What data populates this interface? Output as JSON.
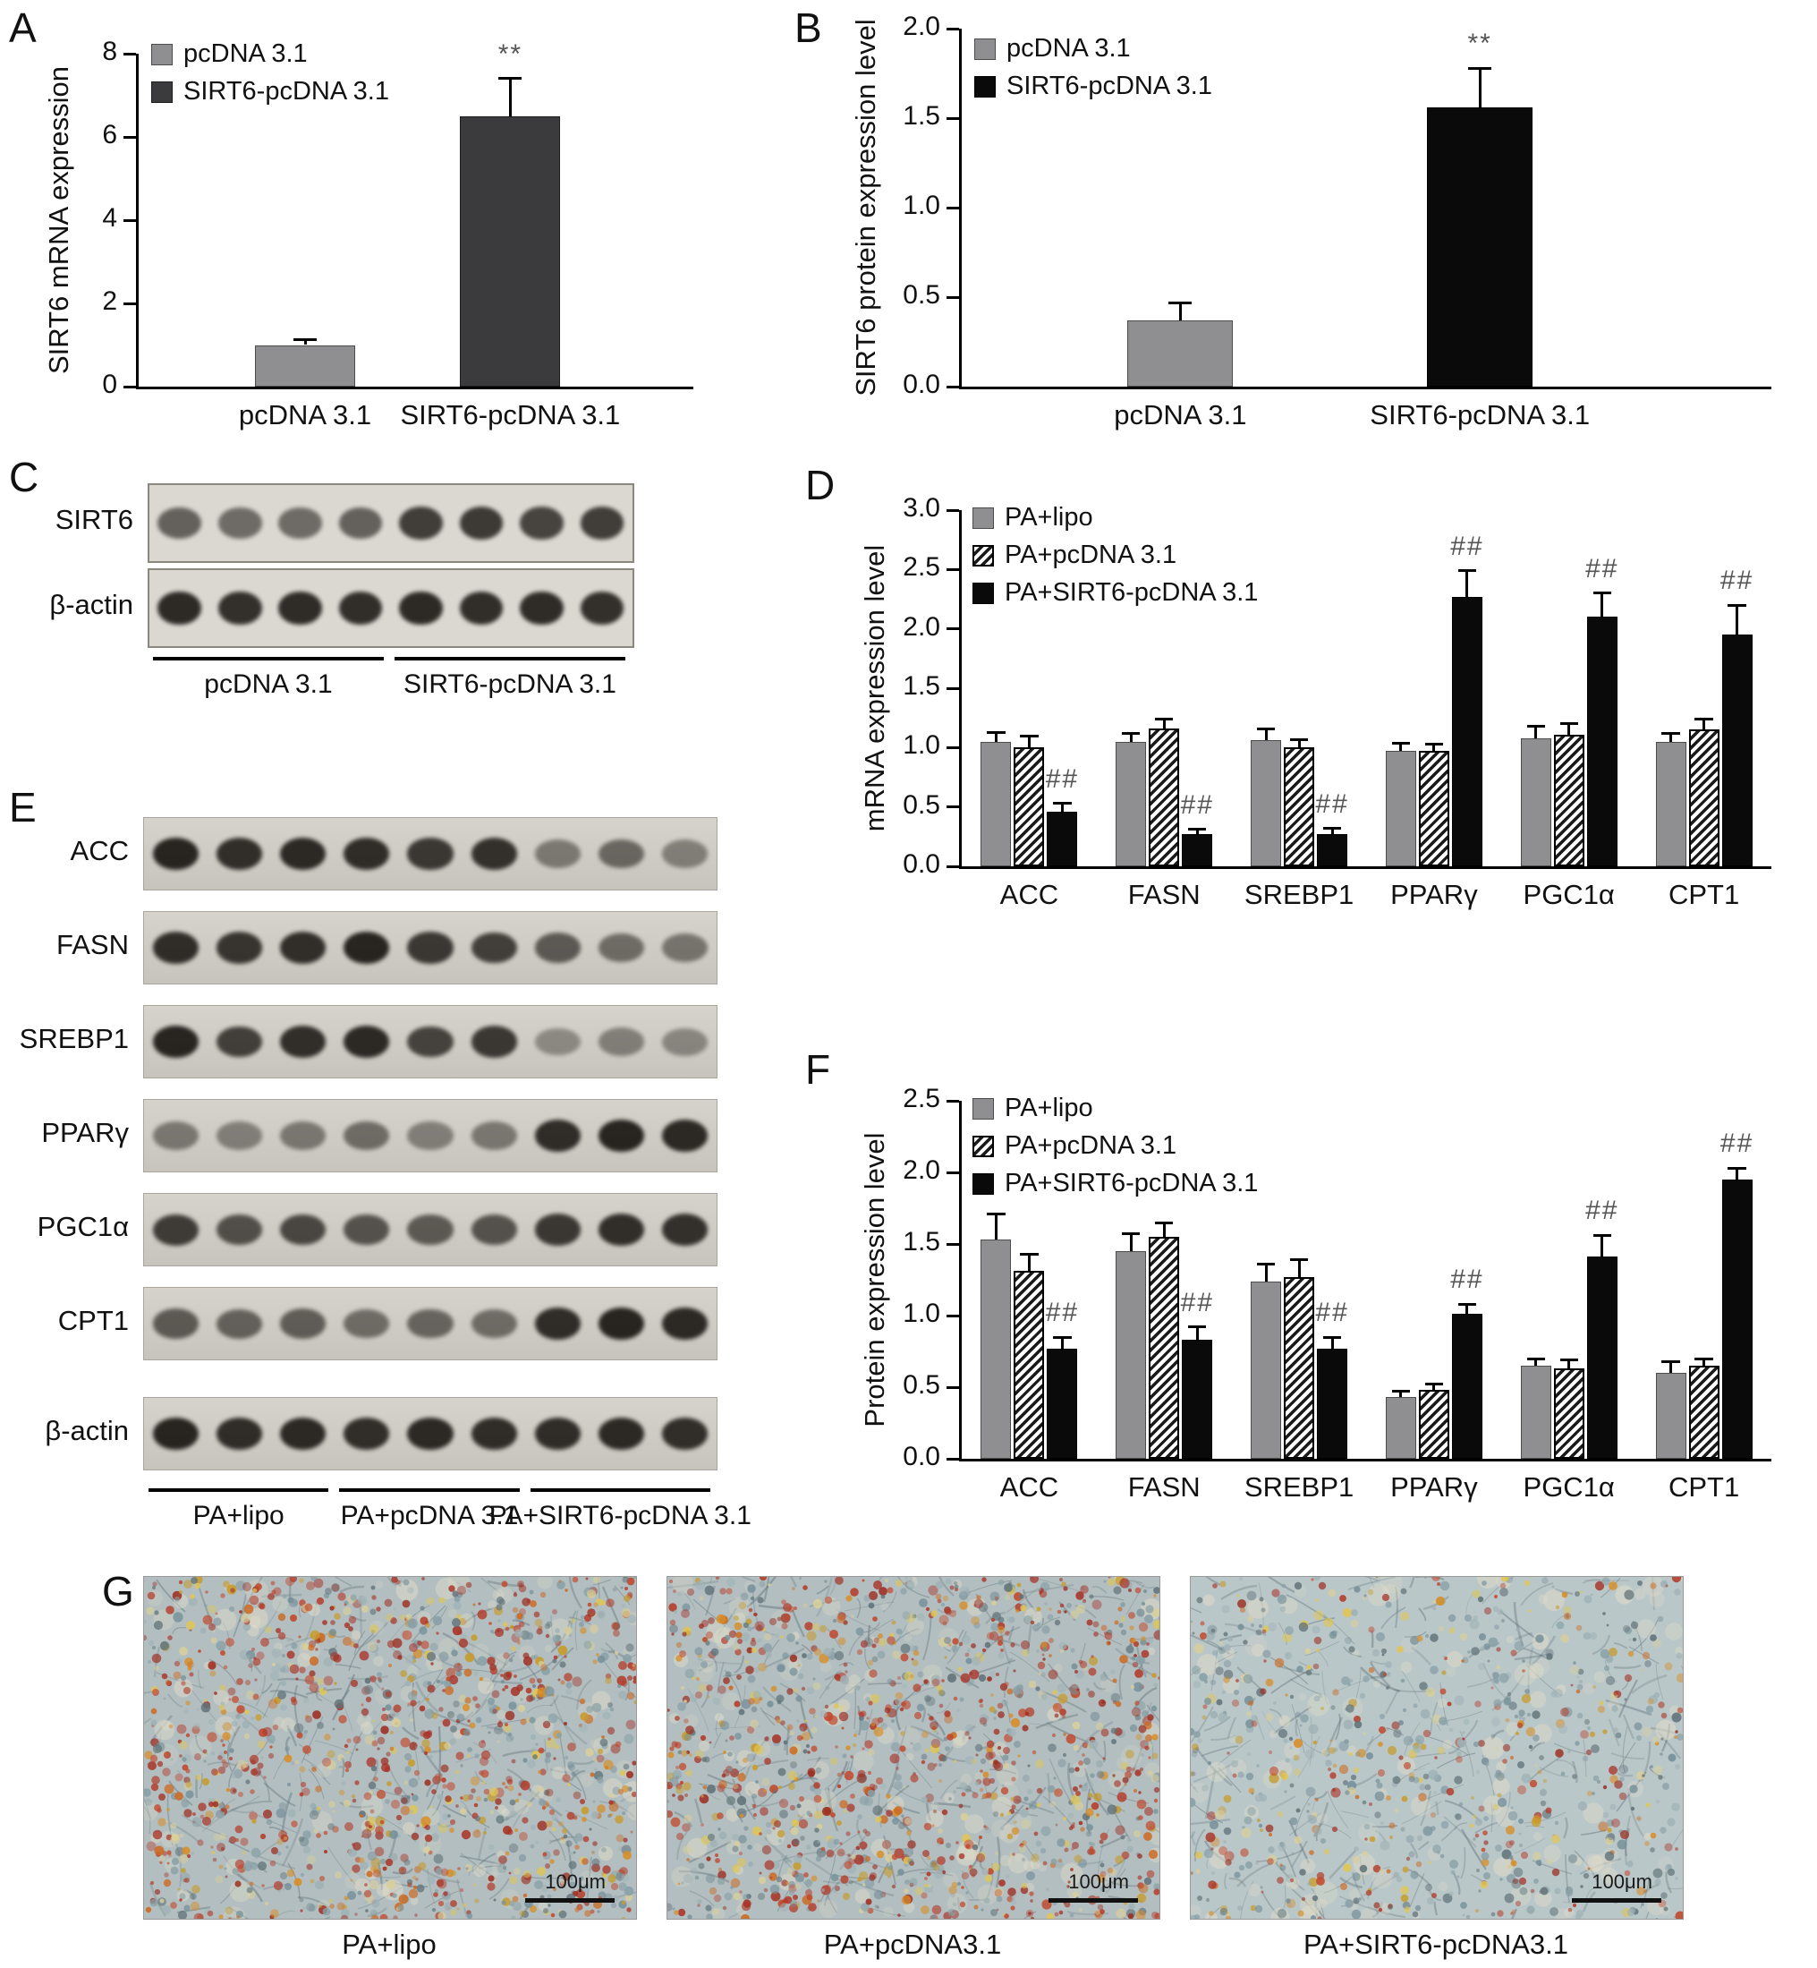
{
  "panel_a": {
    "letter": "A"
  },
  "panel_b": {
    "letter": "B"
  },
  "panel_c": {
    "letter": "C",
    "rows": [
      {
        "label": "SIRT6",
        "intensities": [
          0.6,
          0.55,
          0.55,
          0.6,
          0.78,
          0.8,
          0.75,
          0.78
        ]
      },
      {
        "label": "β-actin",
        "intensities": [
          0.88,
          0.85,
          0.87,
          0.86,
          0.88,
          0.86,
          0.87,
          0.85
        ]
      }
    ],
    "groups": [
      {
        "label": "pcDNA 3.1",
        "span": 4
      },
      {
        "label": "SIRT6-pcDNA 3.1",
        "span": 4
      }
    ]
  },
  "panel_d": {
    "letter": "D"
  },
  "panel_e": {
    "letter": "E",
    "rows": [
      {
        "label": "ACC",
        "intensities": [
          0.9,
          0.85,
          0.88,
          0.86,
          0.8,
          0.84,
          0.45,
          0.55,
          0.42
        ]
      },
      {
        "label": "FASN",
        "intensities": [
          0.86,
          0.82,
          0.85,
          0.9,
          0.8,
          0.76,
          0.62,
          0.52,
          0.48
        ]
      },
      {
        "label": "SREBP1",
        "intensities": [
          0.9,
          0.76,
          0.85,
          0.88,
          0.74,
          0.8,
          0.36,
          0.42,
          0.38
        ]
      },
      {
        "label": "PPARγ",
        "intensities": [
          0.46,
          0.42,
          0.46,
          0.52,
          0.42,
          0.46,
          0.86,
          0.9,
          0.88
        ]
      },
      {
        "label": "PGC1α",
        "intensities": [
          0.78,
          0.68,
          0.72,
          0.66,
          0.62,
          0.66,
          0.8,
          0.85,
          0.84
        ]
      },
      {
        "label": "CPT1",
        "intensities": [
          0.62,
          0.58,
          0.6,
          0.52,
          0.56,
          0.52,
          0.86,
          0.9,
          0.88
        ]
      },
      {
        "label": "β-actin",
        "intensities": [
          0.9,
          0.86,
          0.88,
          0.85,
          0.88,
          0.86,
          0.86,
          0.88,
          0.85
        ]
      }
    ],
    "groups": [
      {
        "label": "PA+lipo",
        "span": 3
      },
      {
        "label": "PA+pcDNA 3.1",
        "span": 3
      },
      {
        "label": "PA+SIRT6-pcDNA 3.1",
        "span": 3
      }
    ]
  },
  "panel_f": {
    "letter": "F"
  },
  "panel_g": {
    "letter": "G",
    "images": [
      {
        "label": "PA+lipo",
        "scale_bar": "100μm",
        "density": "high"
      },
      {
        "label": "PA+pcDNA3.1",
        "scale_bar": "100μm",
        "density": "high"
      },
      {
        "label": "PA+SIRT6-pcDNA3.1",
        "scale_bar": "100μm",
        "density": "low"
      }
    ]
  },
  "chart_data": [
    {
      "id": "A",
      "type": "bar",
      "ylabel": "SIRT6 mRNA expression",
      "categories": [
        "pcDNA 3.1",
        "SIRT6-pcDNA 3.1"
      ],
      "values": [
        1.0,
        6.5
      ],
      "errors": [
        0.12,
        0.9
      ],
      "annotations": [
        "",
        "**"
      ],
      "bar_styles": [
        "gray",
        "darkgray"
      ],
      "ylim": [
        0,
        8
      ],
      "yticks": [
        0,
        2,
        4,
        6,
        8
      ],
      "ytick_labels": [
        "0",
        "2",
        "4",
        "6",
        "8"
      ],
      "legend_position": "top-left"
    },
    {
      "id": "B",
      "type": "bar",
      "ylabel": "SIRT6 protein expression level",
      "categories": [
        "pcDNA 3.1",
        "SIRT6-pcDNA 3.1"
      ],
      "values": [
        0.37,
        1.56
      ],
      "errors": [
        0.1,
        0.22
      ],
      "annotations": [
        "",
        "**"
      ],
      "bar_styles": [
        "gray",
        "black"
      ],
      "ylim": [
        0,
        2.0
      ],
      "yticks": [
        0.0,
        0.5,
        1.0,
        1.5,
        2.0
      ],
      "ytick_labels": [
        "0.0",
        "0.5",
        "1.0",
        "1.5",
        "2.0"
      ],
      "legend_position": "top-left"
    },
    {
      "id": "D",
      "type": "bar",
      "ylabel": "mRNA expression level",
      "categories": [
        "ACC",
        "FASN",
        "SREBP1",
        "PPARγ",
        "PGC1α",
        "CPT1"
      ],
      "series": [
        {
          "name": "PA+lipo",
          "style": "gray",
          "values": [
            1.05,
            1.05,
            1.06,
            0.97,
            1.08,
            1.05
          ],
          "errors": [
            0.08,
            0.07,
            0.1,
            0.07,
            0.1,
            0.07
          ]
        },
        {
          "name": "PA+pcDNA 3.1",
          "style": "hatch",
          "values": [
            1.0,
            1.16,
            1.0,
            0.97,
            1.11,
            1.15
          ],
          "errors": [
            0.1,
            0.08,
            0.07,
            0.06,
            0.09,
            0.09
          ]
        },
        {
          "name": "PA+SIRT6-pcDNA 3.1",
          "style": "black",
          "values": [
            0.46,
            0.27,
            0.27,
            2.27,
            2.1,
            1.95
          ],
          "errors": [
            0.07,
            0.04,
            0.05,
            0.22,
            0.2,
            0.25
          ],
          "annotations": [
            "##",
            "##",
            "##",
            "##",
            "##",
            "##"
          ]
        }
      ],
      "ylim": [
        0,
        3.0
      ],
      "yticks": [
        0.0,
        0.5,
        1.0,
        1.5,
        2.0,
        2.5,
        3.0
      ],
      "ytick_labels": [
        "0.0",
        "0.5",
        "1.0",
        "1.5",
        "2.0",
        "2.5",
        "3.0"
      ],
      "legend_position": "top-left"
    },
    {
      "id": "F",
      "type": "bar",
      "ylabel": "Protein expression level",
      "categories": [
        "ACC",
        "FASN",
        "SREBP1",
        "PPARγ",
        "PGC1α",
        "CPT1"
      ],
      "series": [
        {
          "name": "PA+lipo",
          "style": "gray",
          "values": [
            1.53,
            1.45,
            1.24,
            0.43,
            0.65,
            0.6
          ],
          "errors": [
            0.18,
            0.12,
            0.12,
            0.04,
            0.05,
            0.08
          ]
        },
        {
          "name": "PA+pcDNA 3.1",
          "style": "hatch",
          "values": [
            1.31,
            1.55,
            1.27,
            0.48,
            0.63,
            0.65
          ],
          "errors": [
            0.12,
            0.1,
            0.12,
            0.04,
            0.06,
            0.05
          ]
        },
        {
          "name": "PA+SIRT6-pcDNA 3.1",
          "style": "black",
          "values": [
            0.77,
            0.83,
            0.77,
            1.01,
            1.41,
            1.95
          ],
          "errors": [
            0.08,
            0.09,
            0.08,
            0.07,
            0.15,
            0.08
          ],
          "annotations": [
            "##",
            "##",
            "##",
            "##",
            "##",
            "##"
          ]
        }
      ],
      "ylim": [
        0,
        2.5
      ],
      "yticks": [
        0.0,
        0.5,
        1.0,
        1.5,
        2.0,
        2.5
      ],
      "ytick_labels": [
        "0.0",
        "0.5",
        "1.0",
        "1.5",
        "2.0",
        "2.5"
      ],
      "legend_position": "top-left"
    }
  ]
}
